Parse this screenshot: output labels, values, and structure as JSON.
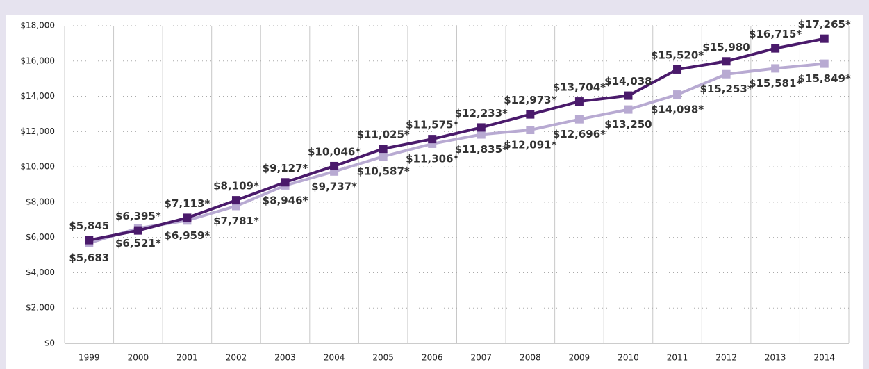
{
  "chart_data": {
    "type": "line",
    "categories": [
      "1999",
      "2000",
      "2001",
      "2002",
      "2003",
      "2004",
      "2005",
      "2006",
      "2007",
      "2008",
      "2009",
      "2010",
      "2011",
      "2012",
      "2013",
      "2014"
    ],
    "series": [
      {
        "color": "#4a1a6b",
        "values": [
          5845,
          6395,
          7113,
          8109,
          9127,
          10046,
          11025,
          11575,
          12233,
          12973,
          13704,
          14038,
          15520,
          15980,
          16715,
          17265
        ],
        "value_labels": [
          "$5,845",
          "$6,395*",
          "$7,113*",
          "$8,109*",
          "$9,127*",
          "$10,046*",
          "$11,025*",
          "$11,575*",
          "$12,233*",
          "$12,973*",
          "$13,704*",
          "$14,038",
          "$15,520*",
          "$15,980",
          "$16,715*",
          "$17,265*"
        ]
      },
      {
        "color": "#b8aad2",
        "values": [
          5683,
          6521,
          6959,
          7781,
          8946,
          9737,
          10587,
          11306,
          11835,
          12091,
          12696,
          13250,
          14098,
          15253,
          15581,
          15849
        ],
        "value_labels": [
          "$5,683",
          "$6,521*",
          "$6,959*",
          "$7,781*",
          "$8,946*",
          "$9,737*",
          "$10,587*",
          "$11,306*",
          "$11,835*",
          "$12,091*",
          "$12,696*",
          "$13,250",
          "$14,098*",
          "$15,253*",
          "$15,581*",
          "$15,849*"
        ]
      }
    ],
    "ylim": [
      0,
      18000
    ],
    "yticks": [
      {
        "value": 0,
        "label": "$0"
      },
      {
        "value": 2000,
        "label": "$2,000"
      },
      {
        "value": 4000,
        "label": "$4,000"
      },
      {
        "value": 6000,
        "label": "$6,000"
      },
      {
        "value": 8000,
        "label": "$8,000"
      },
      {
        "value": 10000,
        "label": "$10,000"
      },
      {
        "value": 12000,
        "label": "$12,000"
      },
      {
        "value": 14000,
        "label": "$14,000"
      },
      {
        "value": 16000,
        "label": "$16,000"
      },
      {
        "value": 18000,
        "label": "$18,000"
      }
    ],
    "grid": true
  }
}
